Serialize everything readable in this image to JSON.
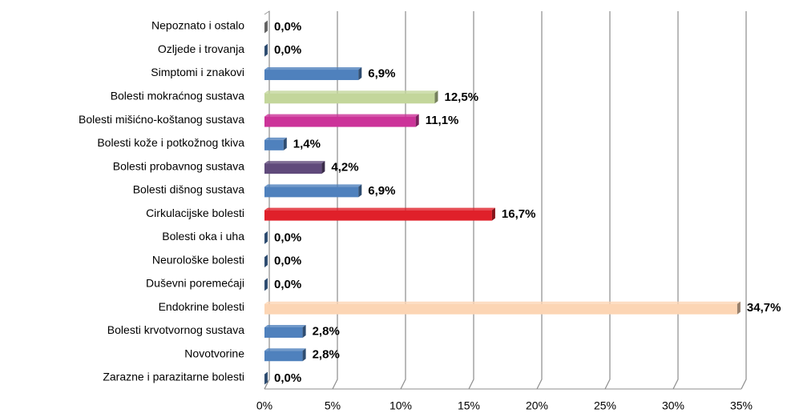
{
  "chart_data": {
    "type": "bar",
    "orientation": "horizontal",
    "categories": [
      "Nepoznato i ostalo",
      "Ozljede i trovanja",
      "Simptomi i znakovi",
      "Bolesti mokraćnog sustava",
      "Bolesti mišićno-koštanog sustava",
      "Bolesti kože i potkožnog tkiva",
      "Bolesti probavnog sustava",
      "Bolesti dišnog sustava",
      "Cirkulacijske bolesti",
      "Bolesti oka i uha",
      "Neurološke bolesti",
      "Duševni poremećaji",
      "Endokrine bolesti",
      "Bolesti krvotvornog sustava",
      "Novotvorine",
      "Zarazne i parazitarne bolesti"
    ],
    "values": [
      0.0,
      0.0,
      6.9,
      12.5,
      11.1,
      1.4,
      4.2,
      6.9,
      16.7,
      0.0,
      0.0,
      0.0,
      34.7,
      2.8,
      2.8,
      0.0
    ],
    "value_labels": [
      "0,0%",
      "0,0%",
      "6,9%",
      "12,5%",
      "11,1%",
      "1,4%",
      "4,2%",
      "6,9%",
      "16,7%",
      "0,0%",
      "0,0%",
      "0,0%",
      "34,7%",
      "2,8%",
      "2,8%",
      "0,0%"
    ],
    "colors": [
      "#a6a6a6",
      "#4f81bd",
      "#4f81bd",
      "#c3d69b",
      "#cc3399",
      "#4f81bd",
      "#604a7b",
      "#4f81bd",
      "#e0202a",
      "#4f81bd",
      "#4f81bd",
      "#4f81bd",
      "#fcd5b4",
      "#4f81bd",
      "#4f81bd",
      "#4f81bd"
    ],
    "xlim": [
      0,
      35
    ],
    "xticks": [
      {
        "value": 0,
        "label": "0%"
      },
      {
        "value": 5,
        "label": "5%"
      },
      {
        "value": 10,
        "label": "10%"
      },
      {
        "value": 15,
        "label": "15%"
      },
      {
        "value": 20,
        "label": "20%"
      },
      {
        "value": 25,
        "label": "25%"
      },
      {
        "value": 30,
        "label": "30%"
      },
      {
        "value": 35,
        "label": "35%"
      }
    ],
    "grid": true
  }
}
